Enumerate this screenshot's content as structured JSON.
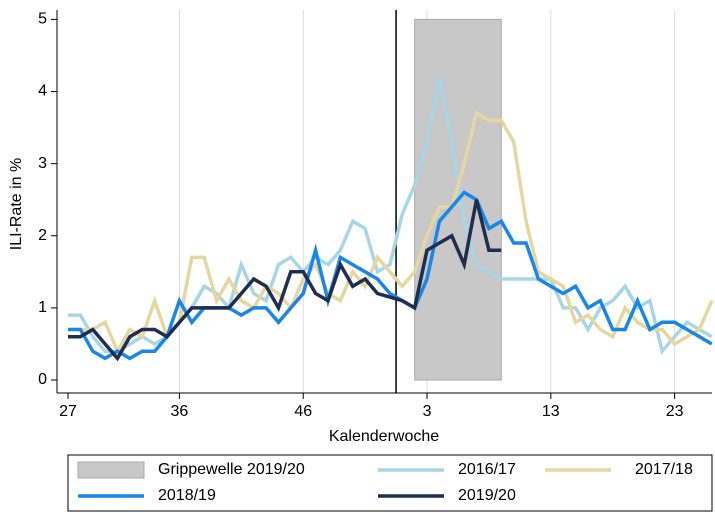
{
  "chart_data": {
    "type": "line",
    "y_label": "ILI-Rate in %",
    "x_label": "Kalenderwoche",
    "categories": [
      "27",
      null,
      null,
      null,
      null,
      null,
      null,
      null,
      null,
      "36",
      null,
      null,
      null,
      null,
      null,
      null,
      null,
      null,
      null,
      "46",
      null,
      null,
      null,
      null,
      null,
      null,
      null,
      null,
      null,
      "3",
      null,
      null,
      null,
      null,
      null,
      null,
      null,
      null,
      null,
      "13",
      null,
      null,
      null,
      null,
      null,
      null,
      null,
      null,
      null,
      "23",
      null,
      null,
      null
    ],
    "ylim": [
      -0.18,
      5.13
    ],
    "yticks": [
      0,
      1,
      2,
      3,
      4,
      5
    ],
    "grid": "x",
    "vline": 26.5,
    "band": {
      "name": "Grippewelle 2019/20",
      "color": "#c8c8c8",
      "start": 28,
      "end": 35
    },
    "series": [
      {
        "name": "2016/17",
        "color": "#a8d6e6",
        "values": [
          0.9,
          0.9,
          0.6,
          0.4,
          0.4,
          0.5,
          0.6,
          0.5,
          0.6,
          0.8,
          1.0,
          1.3,
          1.2,
          1.0,
          1.6,
          1.2,
          1.1,
          1.6,
          1.7,
          1.5,
          1.7,
          1.6,
          1.8,
          2.2,
          2.1,
          1.5,
          1.6,
          2.3,
          2.7,
          3.3,
          4.2,
          3.3,
          2.2,
          1.6,
          1.5,
          1.4,
          1.4,
          1.4,
          1.4,
          1.4,
          1.0,
          1.0,
          0.7,
          1.0,
          1.1,
          1.3,
          1.0,
          1.1,
          0.4,
          0.6,
          0.8,
          0.7,
          0.6
        ]
      },
      {
        "name": "2017/18",
        "color": "#e6d6a0",
        "values": [
          0.7,
          0.7,
          0.7,
          0.8,
          0.4,
          0.7,
          0.6,
          1.1,
          0.6,
          0.8,
          1.7,
          1.7,
          1.1,
          1.4,
          1.1,
          1.0,
          1.3,
          1.2,
          1.0,
          1.4,
          1.6,
          1.2,
          1.1,
          1.5,
          1.3,
          1.7,
          1.5,
          1.3,
          1.5,
          2.0,
          2.4,
          2.4,
          3.0,
          3.7,
          3.6,
          3.6,
          3.3,
          2.2,
          1.5,
          1.4,
          1.3,
          0.8,
          0.9,
          0.7,
          0.6,
          1.0,
          0.8,
          0.7,
          0.7,
          0.5,
          0.6,
          0.7,
          1.1
        ]
      },
      {
        "name": "2018/19",
        "color": "#1a86e8",
        "values": [
          0.7,
          0.7,
          0.4,
          0.3,
          0.4,
          0.3,
          0.4,
          0.4,
          0.6,
          1.1,
          0.8,
          1.0,
          1.0,
          1.0,
          0.9,
          1.0,
          1.0,
          0.8,
          1.0,
          1.2,
          1.8,
          1.1,
          1.7,
          1.6,
          1.5,
          1.4,
          1.2,
          1.1,
          1.0,
          1.4,
          2.2,
          2.4,
          2.6,
          2.5,
          2.1,
          2.2,
          1.9,
          1.9,
          1.4,
          1.3,
          1.2,
          1.3,
          1.0,
          1.1,
          0.7,
          0.7,
          1.1,
          0.7,
          0.8,
          0.8,
          0.7,
          0.6,
          0.5
        ]
      },
      {
        "name": "2019/20",
        "color": "#1f2d50",
        "values": [
          0.6,
          0.6,
          0.7,
          0.5,
          0.3,
          0.6,
          0.7,
          0.7,
          0.6,
          0.8,
          1.0,
          1.0,
          1.0,
          1.0,
          1.2,
          1.4,
          1.3,
          1.0,
          1.5,
          1.5,
          1.2,
          1.1,
          1.6,
          1.3,
          1.4,
          1.2,
          1.15,
          1.1,
          1.0,
          1.8,
          1.9,
          2.0,
          1.6,
          2.5,
          1.8,
          1.8,
          null,
          null,
          null,
          null,
          null,
          null,
          null,
          null,
          null,
          null,
          null,
          null,
          null,
          null,
          null,
          null,
          null
        ]
      }
    ]
  }
}
